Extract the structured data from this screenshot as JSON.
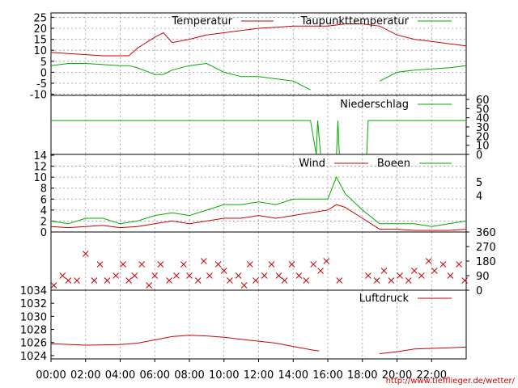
{
  "chart_data": [
    {
      "type": "line",
      "id": "temperature",
      "ylim": [
        -12,
        27
      ],
      "yticks": [
        -10,
        -5,
        0,
        5,
        10,
        15,
        20,
        25
      ],
      "grid": true,
      "legend": "top-right",
      "x": [
        "00:00",
        "01:00",
        "02:00",
        "03:00",
        "04:00",
        "04:30",
        "05:00",
        "06:00",
        "06:30",
        "07:00",
        "08:00",
        "09:00",
        "10:00",
        "11:00",
        "12:00",
        "13:00",
        "14:00",
        "15:00",
        "16:00",
        "17:00",
        "18:00",
        "19:00",
        "20:00",
        "21:00",
        "22:00",
        "23:00",
        "24:00"
      ],
      "series": [
        {
          "name": "Temperatur",
          "color": "#cc0000",
          "values": [
            9,
            8.5,
            8,
            7.5,
            7.5,
            7.5,
            11,
            16,
            18,
            13.5,
            15,
            17,
            18,
            19,
            20,
            20.5,
            21,
            21,
            21,
            22,
            22,
            21,
            17,
            15,
            14,
            13,
            12
          ]
        },
        {
          "name": "Taupunkttemperatur",
          "color": "#00aa00",
          "values": [
            3,
            4,
            4,
            3.5,
            3,
            3,
            2,
            -1,
            -1,
            1,
            3,
            4,
            0,
            -2,
            -2,
            -3,
            -4,
            -8,
            null,
            null,
            null,
            -4,
            0,
            1,
            1.5,
            2,
            3
          ]
        }
      ]
    },
    {
      "type": "line",
      "id": "precipitation",
      "ylim": [
        0,
        60
      ],
      "yticks": [
        0,
        10,
        20,
        30,
        40,
        50,
        60
      ],
      "y_axis_side": "right",
      "legend": "top-right",
      "x": [
        "00:00",
        "15:00",
        "15:20",
        "15:25",
        "15:35",
        "16:30",
        "16:35",
        "16:40",
        "18:15",
        "18:20",
        "18:25",
        "24:00"
      ],
      "series": [
        {
          "name": "Niederschlag",
          "color": "#00aa00",
          "values": [
            37,
            37,
            0,
            37,
            0,
            0,
            37,
            0,
            0,
            37,
            37,
            37
          ]
        }
      ]
    },
    {
      "type": "line",
      "id": "wind",
      "ylim": [
        0,
        14
      ],
      "yticks": [
        0,
        2,
        4,
        6,
        8,
        10,
        12,
        14
      ],
      "right_ticks": [
        "4",
        "5"
      ],
      "grid": true,
      "legend": "top-right",
      "x": [
        "00:00",
        "01:00",
        "02:00",
        "03:00",
        "04:00",
        "05:00",
        "06:00",
        "07:00",
        "08:00",
        "09:00",
        "10:00",
        "11:00",
        "12:00",
        "13:00",
        "14:00",
        "15:00",
        "16:00",
        "16:30",
        "17:00",
        "18:00",
        "19:00",
        "20:00",
        "21:00",
        "22:00",
        "23:00",
        "24:00"
      ],
      "series": [
        {
          "name": "Wind",
          "color": "#cc0000",
          "values": [
            1,
            0.8,
            1,
            1.2,
            0.8,
            1,
            1.5,
            2,
            1.5,
            2,
            2.5,
            2.5,
            3,
            2.5,
            3,
            3.5,
            4,
            5,
            4.5,
            2.5,
            0.5,
            0.5,
            0.3,
            0.3,
            0.3,
            0.5
          ]
        },
        {
          "name": "Boeen",
          "color": "#00aa00",
          "values": [
            2,
            1.5,
            2.5,
            2.5,
            1.5,
            2,
            3,
            3.5,
            3,
            4,
            5,
            5,
            5.5,
            5,
            6,
            6,
            6,
            10,
            7,
            4,
            1.5,
            1.5,
            1.5,
            1,
            1.5,
            2
          ]
        }
      ]
    },
    {
      "type": "scatter",
      "id": "wind_direction",
      "ylim": [
        0,
        360
      ],
      "yticks": [
        0,
        90,
        180,
        270,
        360
      ],
      "y_axis_side": "right",
      "marker": "x",
      "color": "#cc0000",
      "points": [
        [
          "00:10",
          30
        ],
        [
          "00:40",
          90
        ],
        [
          "01:00",
          60
        ],
        [
          "01:30",
          60
        ],
        [
          "02:00",
          225
        ],
        [
          "02:30",
          60
        ],
        [
          "02:50",
          160
        ],
        [
          "03:15",
          60
        ],
        [
          "03:45",
          90
        ],
        [
          "04:10",
          160
        ],
        [
          "04:30",
          60
        ],
        [
          "04:50",
          90
        ],
        [
          "05:15",
          160
        ],
        [
          "05:40",
          30
        ],
        [
          "06:00",
          90
        ],
        [
          "06:20",
          160
        ],
        [
          "06:50",
          60
        ],
        [
          "07:15",
          90
        ],
        [
          "07:40",
          160
        ],
        [
          "08:00",
          90
        ],
        [
          "08:30",
          60
        ],
        [
          "08:50",
          180
        ],
        [
          "09:10",
          90
        ],
        [
          "09:40",
          160
        ],
        [
          "10:00",
          120
        ],
        [
          "10:20",
          60
        ],
        [
          "10:50",
          90
        ],
        [
          "11:10",
          30
        ],
        [
          "11:30",
          160
        ],
        [
          "11:50",
          60
        ],
        [
          "12:20",
          90
        ],
        [
          "12:45",
          160
        ],
        [
          "13:10",
          90
        ],
        [
          "13:30",
          60
        ],
        [
          "13:55",
          160
        ],
        [
          "14:20",
          90
        ],
        [
          "14:45",
          60
        ],
        [
          "15:10",
          160
        ],
        [
          "15:35",
          120
        ],
        [
          "15:55",
          180
        ],
        [
          "16:40",
          60
        ],
        [
          "18:20",
          90
        ],
        [
          "18:50",
          60
        ],
        [
          "19:15",
          120
        ],
        [
          "19:40",
          60
        ],
        [
          "20:10",
          90
        ],
        [
          "20:40",
          60
        ],
        [
          "21:00",
          120
        ],
        [
          "21:25",
          90
        ],
        [
          "21:50",
          180
        ],
        [
          "22:10",
          120
        ],
        [
          "22:40",
          160
        ],
        [
          "23:05",
          90
        ],
        [
          "23:35",
          160
        ],
        [
          "23:55",
          60
        ]
      ]
    },
    {
      "type": "line",
      "id": "pressure",
      "ylim": [
        1023,
        1034
      ],
      "yticks": [
        1024,
        1026,
        1028,
        1030,
        1032,
        1034
      ],
      "legend": "top-right",
      "x": [
        "00:00",
        "02:00",
        "04:00",
        "05:00",
        "06:00",
        "07:00",
        "08:00",
        "09:00",
        "10:00",
        "11:00",
        "12:00",
        "13:00",
        "14:00",
        "15:00",
        "15:30",
        "18:30",
        "19:00",
        "20:00",
        "21:00",
        "22:00",
        "23:00",
        "24:00"
      ],
      "series": [
        {
          "name": "Luftdruck",
          "color": "#cc0000",
          "values": [
            1025.8,
            1025.6,
            1025.7,
            1025.9,
            1026.4,
            1026.9,
            1027.1,
            1027.0,
            1026.8,
            1026.5,
            1026.2,
            1025.9,
            1025.4,
            1024.9,
            1024.7,
            null,
            1024.3,
            1024.6,
            1025.0,
            1025.1,
            1025.2,
            1025.3
          ]
        }
      ]
    }
  ],
  "x_axis": {
    "ticks": [
      "00:00",
      "02:00",
      "04:00",
      "06:00",
      "08:00",
      "10:00",
      "12:00",
      "14:00",
      "16:00",
      "18:00",
      "20:00",
      "22:00"
    ]
  },
  "credit": "http://www.tiefflieger.de/wetter/"
}
